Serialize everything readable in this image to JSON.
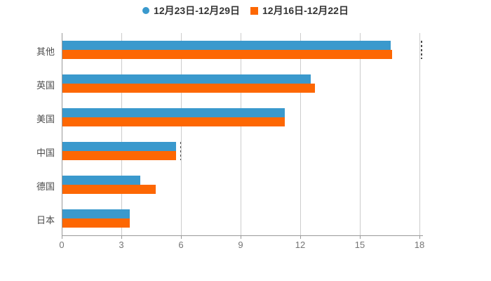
{
  "legend": {
    "items": [
      {
        "label": "12月23日-12月29日",
        "color": "#3A99CD",
        "marker": "circle"
      },
      {
        "label": "12月16日-12月22日",
        "color": "#FD6703",
        "marker": "square"
      }
    ]
  },
  "chart_data": {
    "type": "bar",
    "orientation": "horizontal",
    "title": "",
    "xlabel": "",
    "ylabel": "",
    "categories": [
      "其他",
      "英国",
      "美国",
      "中国",
      "德国",
      "日本"
    ],
    "series": [
      {
        "name": "12月23日-12月29日",
        "color": "#3A99CD",
        "values": [
          16.5,
          12.5,
          11.2,
          5.7,
          3.9,
          3.4
        ]
      },
      {
        "name": "12月16日-12月22日",
        "color": "#FD6703",
        "values": [
          16.6,
          12.7,
          11.2,
          5.7,
          4.7,
          3.4
        ]
      }
    ],
    "x_ticks": [
      0,
      3,
      6,
      9,
      12,
      15,
      18
    ],
    "xlim": [
      0,
      18.2
    ],
    "grid": true,
    "legend_position": "top"
  },
  "colors": {
    "background": "#ffffff",
    "grid": "#cccccc",
    "axis": "#999999",
    "tick_label": "#757575",
    "category_label": "#4d4d4d",
    "legend_text": "#333333"
  }
}
